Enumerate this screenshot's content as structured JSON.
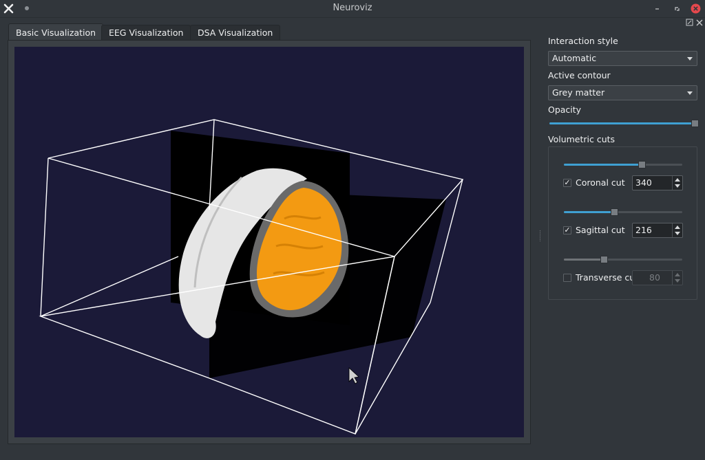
{
  "window": {
    "title": "Neuroviz"
  },
  "tabs": [
    {
      "label": "Basic Visualization",
      "active": true
    },
    {
      "label": "EEG Visualization",
      "active": false
    },
    {
      "label": "DSA Visualization",
      "active": false
    }
  ],
  "controls": {
    "interaction_style_label": "Interaction style",
    "interaction_style_value": "Automatic",
    "active_contour_label": "Active contour",
    "active_contour_value": "Grey matter",
    "opacity_label": "Opacity",
    "opacity_value": 1.0,
    "volumetric_cuts_label": "Volumetric cuts",
    "cuts": [
      {
        "label": "Coronal cut",
        "checked": true,
        "value": "340",
        "slider_fraction": 0.66,
        "enabled": true
      },
      {
        "label": "Sagittal cut",
        "checked": true,
        "value": "216",
        "slider_fraction": 0.42,
        "enabled": true
      },
      {
        "label": "Transverse cut",
        "checked": false,
        "value": "80",
        "slider_fraction": 0.33,
        "enabled": false
      }
    ]
  },
  "colors": {
    "viewport_bg": "#1b1a38",
    "accent": "#3daee9",
    "cortex": "#f39a12",
    "skin": "#e9e9e9",
    "close_button": "#e5484d"
  },
  "icons": {
    "app_close": "x-icon",
    "minimize": "minimize-icon",
    "maximize": "restore-icon",
    "close": "close-icon"
  }
}
